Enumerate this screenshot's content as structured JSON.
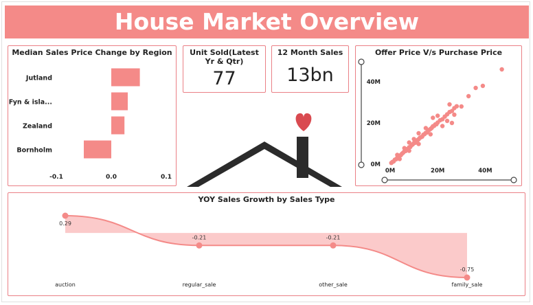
{
  "dashboard": {
    "title": "House Market Overview"
  },
  "colors": {
    "accent": "#f48a88",
    "bar": "#f48a88",
    "area": "#fbcaca",
    "line": "#f48a88",
    "roof": "#2b2b2b",
    "heart": "#d94a50"
  },
  "kpi": {
    "units_title": "Unit Sold(Latest Yr & Qtr)",
    "units_value": "77",
    "sales_title": "12 Month Sales",
    "sales_value": "13bn"
  },
  "decor": {
    "house_icon": "house-with-heart-icon"
  },
  "chart_data": [
    {
      "id": "region",
      "type": "bar",
      "orientation": "horizontal",
      "title": "Median Sales Price Change by Region",
      "categories": [
        "Jutland",
        "Fyn & isla...",
        "Zealand",
        "Bornholm"
      ],
      "values": [
        0.052,
        0.03,
        0.024,
        -0.05
      ],
      "xlim": [
        -0.1,
        0.1
      ],
      "xticks": [
        -0.1,
        0.0,
        0.1
      ],
      "xtick_labels": [
        "-0.1",
        "0.0",
        "0.1"
      ]
    },
    {
      "id": "scatter",
      "type": "scatter",
      "title": "Offer Price V/s Purchase Price",
      "xlim": [
        0,
        50
      ],
      "ylim": [
        0,
        50
      ],
      "xticks": [
        0,
        20,
        40
      ],
      "xtick_labels": [
        "0M",
        "20M",
        "40M"
      ],
      "yticks": [
        0,
        20,
        40
      ],
      "ytick_labels": [
        "0M",
        "20M",
        "40M"
      ],
      "points": [
        [
          0.5,
          0.6
        ],
        [
          1,
          1.1
        ],
        [
          1.5,
          1.4
        ],
        [
          2,
          2.2
        ],
        [
          2.5,
          2.4
        ],
        [
          3,
          3.1
        ],
        [
          3.5,
          3.3
        ],
        [
          4,
          4.2
        ],
        [
          4.5,
          4.4
        ],
        [
          5,
          5.1
        ],
        [
          5.5,
          5.6
        ],
        [
          6,
          6.2
        ],
        [
          6.5,
          6.4
        ],
        [
          7,
          7.3
        ],
        [
          7.5,
          7.4
        ],
        [
          8,
          8.2
        ],
        [
          8.5,
          8.4
        ],
        [
          9,
          9.2
        ],
        [
          9.5,
          9.6
        ],
        [
          10,
          10.3
        ],
        [
          10.5,
          10.4
        ],
        [
          11,
          11.2
        ],
        [
          11.5,
          11.7
        ],
        [
          12,
          12.1
        ],
        [
          12.5,
          12.8
        ],
        [
          13,
          13.1
        ],
        [
          13.5,
          13.4
        ],
        [
          14,
          14.3
        ],
        [
          14.5,
          14.6
        ],
        [
          15,
          15.2
        ],
        [
          15.5,
          15.4
        ],
        [
          16,
          16.3
        ],
        [
          16.5,
          16.7
        ],
        [
          17,
          17.1
        ],
        [
          17.5,
          17.6
        ],
        [
          18,
          18.4
        ],
        [
          18.5,
          18.6
        ],
        [
          19,
          19.3
        ],
        [
          19.5,
          19.4
        ],
        [
          20,
          20.2
        ],
        [
          21,
          21.3
        ],
        [
          22,
          21.8
        ],
        [
          23,
          23.1
        ],
        [
          24,
          24.2
        ],
        [
          25,
          25.3
        ],
        [
          26,
          25.8
        ],
        [
          27,
          27.2
        ],
        [
          28,
          28.1
        ],
        [
          3,
          4.5
        ],
        [
          4,
          2.5
        ],
        [
          6,
          7.8
        ],
        [
          8,
          6.5
        ],
        [
          10,
          12.2
        ],
        [
          12,
          9.8
        ],
        [
          15,
          17.5
        ],
        [
          17,
          14.5
        ],
        [
          20,
          23.5
        ],
        [
          22,
          18.5
        ],
        [
          25,
          29
        ],
        [
          27,
          24
        ],
        [
          30,
          28
        ],
        [
          33,
          33
        ],
        [
          36,
          37
        ],
        [
          39,
          38
        ],
        [
          47,
          46
        ],
        [
          24,
          21
        ],
        [
          26,
          20
        ],
        [
          18,
          22.5
        ],
        [
          12,
          15
        ],
        [
          8,
          10.5
        ]
      ]
    },
    {
      "id": "yoy",
      "type": "area",
      "title": "YOY Sales Growth by Sales Type",
      "categories": [
        "auction",
        "regular_sale",
        "other_sale",
        "family_sale"
      ],
      "values": [
        0.29,
        -0.21,
        -0.21,
        -0.75
      ],
      "value_labels": [
        "0.29",
        "-0.21",
        "-0.21",
        "-0.75"
      ],
      "ylim": [
        -0.75,
        0.29
      ]
    }
  ]
}
